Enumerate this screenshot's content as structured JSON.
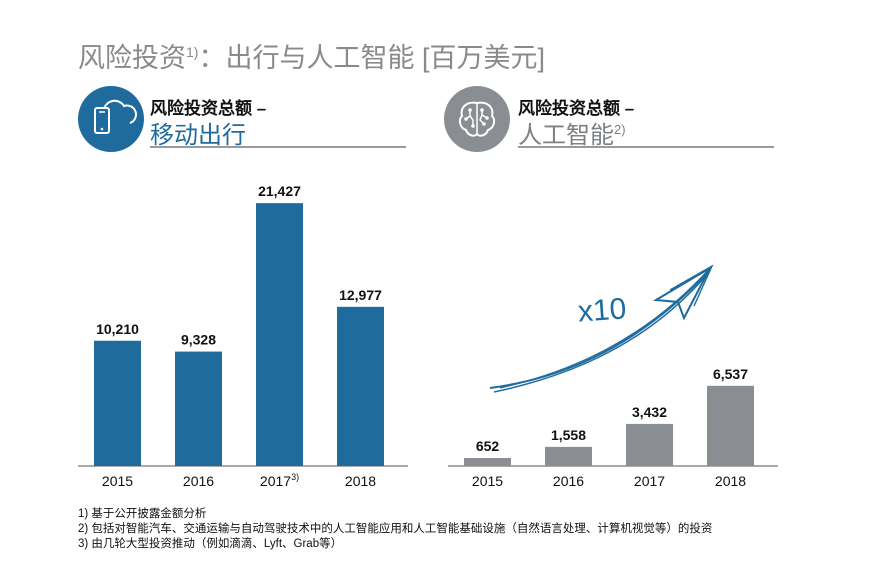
{
  "title": {
    "text": "风险投资",
    "sup": "1)",
    "rest": "：出行与人工智能 [百万美元]"
  },
  "panels": [
    {
      "heading": "风险投资总额 –",
      "subheading": "移动出行",
      "sub_sup": "",
      "icon": "smartphone-cloud-icon",
      "accent": "#1f6b9e"
    },
    {
      "heading": "风险投资总额 –",
      "subheading": "人工智能",
      "sub_sup": "2)",
      "icon": "brain-circuit-icon",
      "accent": "#8a8d92"
    }
  ],
  "annotation": {
    "text": "x10",
    "icon": "rising-arrow-icon"
  },
  "chart_data": [
    {
      "type": "bar",
      "categories": [
        "2015",
        "2016",
        "2017",
        "2018"
      ],
      "category_sups": [
        "",
        "",
        "3)",
        ""
      ],
      "values": [
        10210,
        9328,
        21427,
        12977
      ],
      "value_labels": [
        "10,210",
        "9,328",
        "21,427",
        "12,977"
      ],
      "color": "#1f6b9e",
      "ylim": [
        0,
        22500
      ]
    },
    {
      "type": "bar",
      "categories": [
        "2015",
        "2016",
        "2017",
        "2018"
      ],
      "category_sups": [
        "",
        "",
        "",
        ""
      ],
      "values": [
        652,
        1558,
        3432,
        6537
      ],
      "value_labels": [
        "652",
        "1,558",
        "3,432",
        "6,537"
      ],
      "color": "#8a8d92",
      "ylim": [
        0,
        22500
      ]
    }
  ],
  "footnotes": [
    "1) 基于公开披露金额分析",
    "2) 包括对智能汽车、交通运输与自动驾驶技术中的人工智能应用和人工智能基础设施（自然语言处理、计算机视觉等）的投资",
    "3) 由几轮大型投资推动（例如滴滴、Lyft、Grab等）"
  ]
}
